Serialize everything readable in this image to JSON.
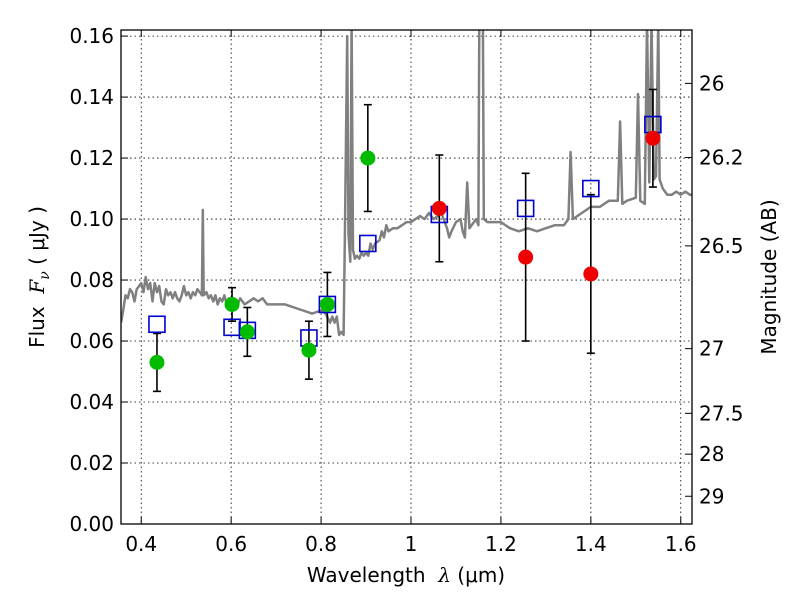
{
  "chart_data": {
    "type": "scatter",
    "xlabel_prefix": "Wavelength  ",
    "xlabel_math": "λ",
    "xlabel_unit": " (μm)",
    "ylabel_prefix": "Flux  ",
    "ylabel_math": "F",
    "ylabel_math_sub": "ν",
    "ylabel_unit": " ( μJy )",
    "y2label": "Magnitude (AB)",
    "xlim": [
      0.355,
      1.625
    ],
    "ylim": [
      0.0,
      0.162
    ],
    "x_ticks": [
      0.4,
      0.6,
      0.8,
      1.0,
      1.2,
      1.4,
      1.6
    ],
    "x_tick_labels": [
      "0.4",
      "0.6",
      "0.8",
      "1",
      "1.2",
      "1.4",
      "1.6"
    ],
    "y_ticks": [
      0.0,
      0.02,
      0.04,
      0.06,
      0.08,
      0.1,
      0.12,
      0.14,
      0.16
    ],
    "y_tick_labels": [
      "0.00",
      "0.02",
      "0.04",
      "0.06",
      "0.08",
      "0.10",
      "0.12",
      "0.14",
      "0.16"
    ],
    "y2_ticks": [
      {
        "label": "26",
        "flux": 0.1445
      },
      {
        "label": "26.2",
        "flux": 0.1202
      },
      {
        "label": "26.5",
        "flux": 0.0912
      },
      {
        "label": "27",
        "flux": 0.0575
      },
      {
        "label": "27.5",
        "flux": 0.0363
      },
      {
        "label": "28",
        "flux": 0.0229
      },
      {
        "label": "29",
        "flux": 0.0091
      }
    ],
    "grid": true,
    "colors": {
      "model": "#808080",
      "green": "#00bb00",
      "red": "#ee0000",
      "model_box": "#0000cc",
      "errorbar": "#000000"
    },
    "series": [
      {
        "kind": "spectrum",
        "points": [
          [
            0.355,
            0.066
          ],
          [
            0.36,
            0.07
          ],
          [
            0.365,
            0.075
          ],
          [
            0.37,
            0.074
          ],
          [
            0.375,
            0.077
          ],
          [
            0.38,
            0.076
          ],
          [
            0.385,
            0.073
          ],
          [
            0.39,
            0.077
          ],
          [
            0.395,
            0.078
          ],
          [
            0.4,
            0.079
          ],
          [
            0.405,
            0.076
          ],
          [
            0.41,
            0.081
          ],
          [
            0.415,
            0.077
          ],
          [
            0.42,
            0.079
          ],
          [
            0.425,
            0.073
          ],
          [
            0.43,
            0.079
          ],
          [
            0.435,
            0.076
          ],
          [
            0.44,
            0.078
          ],
          [
            0.445,
            0.073
          ],
          [
            0.45,
            0.072
          ],
          [
            0.455,
            0.077
          ],
          [
            0.46,
            0.075
          ],
          [
            0.465,
            0.076
          ],
          [
            0.47,
            0.074
          ],
          [
            0.475,
            0.076
          ],
          [
            0.48,
            0.074
          ],
          [
            0.485,
            0.073
          ],
          [
            0.49,
            0.075
          ],
          [
            0.495,
            0.078
          ],
          [
            0.5,
            0.075
          ],
          [
            0.505,
            0.076
          ],
          [
            0.51,
            0.074
          ],
          [
            0.515,
            0.076
          ],
          [
            0.52,
            0.075
          ],
          [
            0.525,
            0.077
          ],
          [
            0.53,
            0.076
          ],
          [
            0.535,
            0.075
          ],
          [
            0.537,
            0.103
          ],
          [
            0.539,
            0.075
          ],
          [
            0.545,
            0.076
          ],
          [
            0.55,
            0.074
          ],
          [
            0.555,
            0.075
          ],
          [
            0.56,
            0.073
          ],
          [
            0.565,
            0.075
          ],
          [
            0.57,
            0.072
          ],
          [
            0.575,
            0.074
          ],
          [
            0.58,
            0.073
          ],
          [
            0.585,
            0.075
          ],
          [
            0.59,
            0.072
          ],
          [
            0.595,
            0.074
          ],
          [
            0.6,
            0.073
          ],
          [
            0.605,
            0.074
          ],
          [
            0.61,
            0.073
          ],
          [
            0.615,
            0.072
          ],
          [
            0.62,
            0.074
          ],
          [
            0.625,
            0.073
          ],
          [
            0.63,
            0.072
          ],
          [
            0.64,
            0.073
          ],
          [
            0.65,
            0.074
          ],
          [
            0.66,
            0.073
          ],
          [
            0.67,
            0.074
          ],
          [
            0.68,
            0.072
          ],
          [
            0.7,
            0.072
          ],
          [
            0.72,
            0.072
          ],
          [
            0.74,
            0.071
          ],
          [
            0.76,
            0.07
          ],
          [
            0.78,
            0.069
          ],
          [
            0.8,
            0.07
          ],
          [
            0.81,
            0.069
          ],
          [
            0.82,
            0.066
          ],
          [
            0.825,
            0.068
          ],
          [
            0.83,
            0.066
          ],
          [
            0.835,
            0.068
          ],
          [
            0.84,
            0.062
          ],
          [
            0.845,
            0.063
          ],
          [
            0.85,
            0.062
          ],
          [
            0.853,
            0.095
          ],
          [
            0.858,
            0.16
          ],
          [
            0.861,
            0.095
          ],
          [
            0.865,
            0.086
          ],
          [
            0.868,
            0.165
          ],
          [
            0.871,
            0.09
          ],
          [
            0.875,
            0.087
          ],
          [
            0.88,
            0.088
          ],
          [
            0.885,
            0.087
          ],
          [
            0.89,
            0.089
          ],
          [
            0.895,
            0.088
          ],
          [
            0.9,
            0.089
          ],
          [
            0.905,
            0.088
          ],
          [
            0.91,
            0.092
          ],
          [
            0.915,
            0.09
          ],
          [
            0.92,
            0.092
          ],
          [
            0.93,
            0.093
          ],
          [
            0.935,
            0.096
          ],
          [
            0.94,
            0.094
          ],
          [
            0.945,
            0.098
          ],
          [
            0.95,
            0.096
          ],
          [
            0.96,
            0.097
          ],
          [
            0.97,
            0.097
          ],
          [
            0.98,
            0.098
          ],
          [
            0.99,
            0.099
          ],
          [
            1.0,
            0.099
          ],
          [
            1.01,
            0.1
          ],
          [
            1.02,
            0.101
          ],
          [
            1.03,
            0.1
          ],
          [
            1.04,
            0.102
          ],
          [
            1.05,
            0.1
          ],
          [
            1.06,
            0.101
          ],
          [
            1.065,
            0.104
          ],
          [
            1.07,
            0.101
          ],
          [
            1.08,
            0.097
          ],
          [
            1.085,
            0.094
          ],
          [
            1.09,
            0.096
          ],
          [
            1.1,
            0.099
          ],
          [
            1.11,
            0.1
          ],
          [
            1.115,
            0.096
          ],
          [
            1.12,
            0.094
          ],
          [
            1.125,
            0.112
          ],
          [
            1.13,
            0.097
          ],
          [
            1.14,
            0.099
          ],
          [
            1.145,
            0.1
          ],
          [
            1.15,
            0.098
          ],
          [
            1.152,
            0.165
          ],
          [
            1.16,
            0.165
          ],
          [
            1.162,
            0.1
          ],
          [
            1.17,
            0.099
          ],
          [
            1.18,
            0.099
          ],
          [
            1.2,
            0.099
          ],
          [
            1.22,
            0.097
          ],
          [
            1.24,
            0.096
          ],
          [
            1.26,
            0.097
          ],
          [
            1.28,
            0.096
          ],
          [
            1.3,
            0.097
          ],
          [
            1.32,
            0.098
          ],
          [
            1.34,
            0.098
          ],
          [
            1.35,
            0.1
          ],
          [
            1.355,
            0.122
          ],
          [
            1.36,
            0.1
          ],
          [
            1.37,
            0.101
          ],
          [
            1.38,
            0.102
          ],
          [
            1.4,
            0.104
          ],
          [
            1.42,
            0.104
          ],
          [
            1.44,
            0.106
          ],
          [
            1.46,
            0.106
          ],
          [
            1.465,
            0.132
          ],
          [
            1.47,
            0.105
          ],
          [
            1.48,
            0.106
          ],
          [
            1.5,
            0.107
          ],
          [
            1.505,
            0.141
          ],
          [
            1.51,
            0.106
          ],
          [
            1.52,
            0.105
          ],
          [
            1.525,
            0.165
          ],
          [
            1.53,
            0.112
          ],
          [
            1.535,
            0.165
          ],
          [
            1.54,
            0.113
          ],
          [
            1.545,
            0.114
          ],
          [
            1.55,
            0.165
          ],
          [
            1.553,
            0.113
          ],
          [
            1.56,
            0.11
          ],
          [
            1.57,
            0.108
          ],
          [
            1.58,
            0.108
          ],
          [
            1.59,
            0.109
          ],
          [
            1.6,
            0.108
          ],
          [
            1.61,
            0.109
          ],
          [
            1.62,
            0.108
          ],
          [
            1.625,
            0.108
          ]
        ]
      },
      {
        "kind": "model_boxes",
        "points": [
          {
            "x": 0.435,
            "y": 0.0655
          },
          {
            "x": 0.602,
            "y": 0.0645
          },
          {
            "x": 0.636,
            "y": 0.0635
          },
          {
            "x": 0.773,
            "y": 0.061
          },
          {
            "x": 0.814,
            "y": 0.072
          },
          {
            "x": 0.904,
            "y": 0.092
          },
          {
            "x": 1.063,
            "y": 0.1015
          },
          {
            "x": 1.255,
            "y": 0.1035
          },
          {
            "x": 1.4,
            "y": 0.11
          },
          {
            "x": 1.538,
            "y": 0.131
          }
        ]
      },
      {
        "kind": "green_points",
        "points": [
          {
            "x": 0.435,
            "y": 0.053,
            "err": 0.0095
          },
          {
            "x": 0.602,
            "y": 0.072,
            "err": 0.0055
          },
          {
            "x": 0.636,
            "y": 0.063,
            "err": 0.008
          },
          {
            "x": 0.773,
            "y": 0.057,
            "err": 0.0095
          },
          {
            "x": 0.814,
            "y": 0.072,
            "err": 0.0105
          },
          {
            "x": 0.904,
            "y": 0.12,
            "err": 0.0175
          }
        ]
      },
      {
        "kind": "red_points",
        "points": [
          {
            "x": 1.063,
            "y": 0.1035,
            "err": 0.0175
          },
          {
            "x": 1.255,
            "y": 0.0875,
            "err": 0.0275
          },
          {
            "x": 1.4,
            "y": 0.082,
            "err": 0.026
          },
          {
            "x": 1.538,
            "y": 0.1265,
            "err": 0.016
          }
        ]
      }
    ]
  }
}
